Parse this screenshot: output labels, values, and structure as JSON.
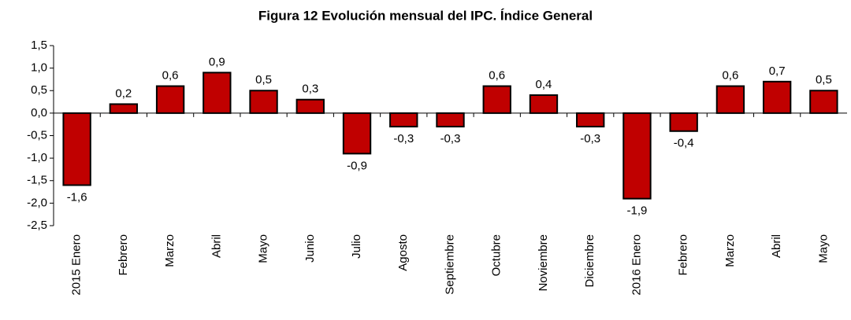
{
  "chart_data": {
    "type": "bar",
    "title": "Figura 12 Evolución mensual del IPC. Índice General",
    "categories": [
      "2015 Enero",
      "Febrero",
      "Marzo",
      "Abril",
      "Mayo",
      "Junio",
      "Julio",
      "Agosto",
      "Septiembre",
      "Octubre",
      "Noviembre",
      "Diciembre",
      "2016 Enero",
      "Febrero",
      "Marzo",
      "Abril",
      "Mayo"
    ],
    "values": [
      -1.6,
      0.2,
      0.6,
      0.9,
      0.5,
      0.3,
      -0.9,
      -0.3,
      -0.3,
      0.6,
      0.4,
      -0.3,
      -1.9,
      -0.4,
      0.6,
      0.7,
      0.5
    ],
    "value_labels": [
      "-1,6",
      "0,2",
      "0,6",
      "0,9",
      "0,5",
      "0,3",
      "-0,9",
      "-0,3",
      "-0,3",
      "0,6",
      "0,4",
      "-0,3",
      "-1,9",
      "-0,4",
      "0,6",
      "0,7",
      "0,5"
    ],
    "color": "#c00000",
    "ylim": [
      -2.5,
      1.5
    ],
    "yticks": [
      {
        "value": 1.5,
        "label": "1,5"
      },
      {
        "value": 1.0,
        "label": "1,0"
      },
      {
        "value": 0.5,
        "label": "0,5"
      },
      {
        "value": 0,
        "label": "0,0"
      },
      {
        "value": -0.5,
        "label": "-0,5"
      },
      {
        "value": -1.0,
        "label": "-1,0"
      },
      {
        "value": -1.5,
        "label": "-1,5"
      },
      {
        "value": -2.0,
        "label": "-2,0"
      },
      {
        "value": -2.5,
        "label": "-2,5"
      }
    ],
    "grid": false
  }
}
